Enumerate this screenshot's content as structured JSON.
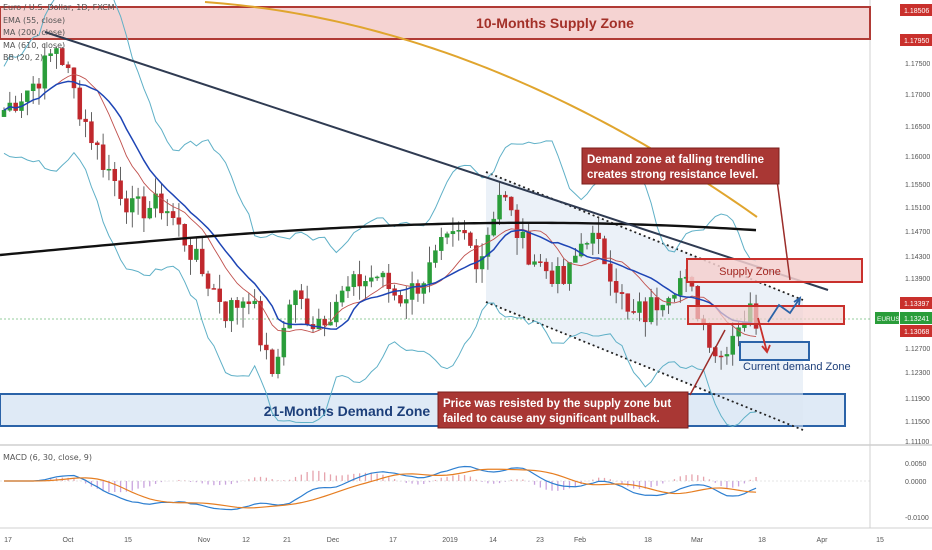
{
  "chart_data": {
    "type": "candlestick",
    "symbol": "Euro / U.S. Dollar, 1D, FXCM",
    "indicators": [
      "EMA (55, close)",
      "MA (200, close)",
      "MA (610, close)",
      "BB (20, 2)"
    ],
    "price_axis": {
      "ticks": [
        "1.18506",
        "1.17950",
        "1.17500",
        "1.17000",
        "1.16500",
        "1.16000",
        "1.15500",
        "1.15100",
        "1.14700",
        "1.14300",
        "1.13900",
        "1.13397",
        "1.13241",
        "1.13068",
        "1.12700",
        "1.12300",
        "1.11900",
        "1.11500",
        "1.11100"
      ],
      "ylim": [
        1.111,
        1.186
      ]
    },
    "time_axis": {
      "ticks": [
        "17",
        "Oct",
        "15",
        "Nov",
        "12",
        "21",
        "Dec",
        "17",
        "2019",
        "14",
        "23",
        "Feb",
        "18",
        "Mar",
        "18",
        "Apr",
        "15"
      ]
    },
    "current_price_label": "EURUSD",
    "current_price": "1.13241",
    "macd": {
      "label": "MACD (6, 30, close, 9)",
      "ticks": [
        "0.0050",
        "0.0000",
        "-0.0100"
      ],
      "ylim": [
        -0.013,
        0.0085
      ]
    },
    "zones": {
      "supply_10m": "10-Months Supply Zone",
      "demand_21m": "21-Months Demand Zone",
      "supply": "Supply Zone",
      "current_demand": "Current demand Zone"
    },
    "annotations": {
      "resistance": [
        "Demand zone at falling trendline",
        "creates strong resistance level."
      ],
      "resisted": [
        "Price was resisted by the supply zone but",
        "failed to cause any significant pullback."
      ]
    },
    "colors": {
      "up": "#2a9d3a",
      "down": "#c0282d",
      "ema": "#1e45b5",
      "ma200": "#e0a52e",
      "ma610": "#111111",
      "bb": "#5fb0c7",
      "zone_red": "#c0392b",
      "zone_blue": "#2a6db5",
      "macd_line": "#2e7fd0",
      "signal_line": "#e67e22"
    }
  }
}
